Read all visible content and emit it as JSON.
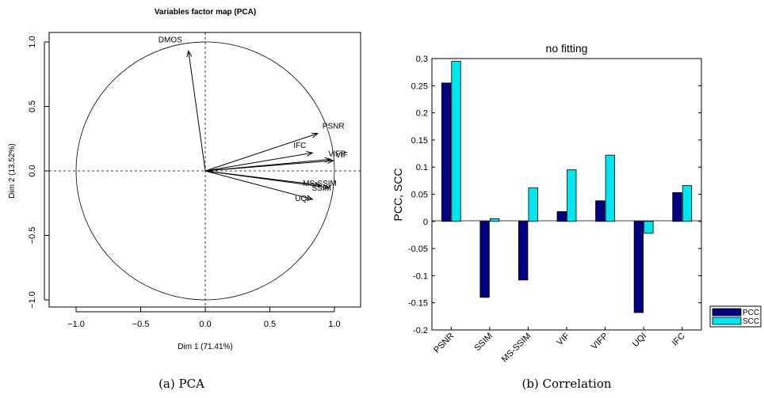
{
  "pca": {
    "title": "Variables factor map (PCA)",
    "xlabel": "Dim 1 (71.41%)",
    "ylabel": "Dim 2 (13.52%)",
    "xticks": [
      "−1.0",
      "−0.5",
      "0.0",
      "0.5",
      "1.0"
    ],
    "yticks": [
      "−1.0",
      "−0.5",
      "0.0",
      "0.5",
      "1.0"
    ],
    "caption": "(a)  PCA"
  },
  "corr": {
    "title": "no fitting",
    "ylabel": "PCC, SCC",
    "yticks": [
      "-0.2",
      "-0.15",
      "-0.1",
      "-0.05",
      "0",
      "0.05",
      "0.1",
      "0.15",
      "0.2",
      "0.25",
      "0.3"
    ],
    "caption": "(b)  Correlation"
  },
  "chart_data": [
    {
      "type": "scatter",
      "title": "Variables factor map (PCA)",
      "xlabel": "Dim 1 (71.41%)",
      "ylabel": "Dim 2 (13.52%)",
      "xlim": [
        -1.2,
        1.2
      ],
      "ylim": [
        -1.05,
        1.05
      ],
      "unit_circle": true,
      "grid": "dashed axes through origin",
      "vectors": [
        {
          "name": "DMOS",
          "x": -0.13,
          "y": 0.93
        },
        {
          "name": "PSNR",
          "x": 0.87,
          "y": 0.29
        },
        {
          "name": "IFC",
          "x": 0.83,
          "y": 0.14
        },
        {
          "name": "VIF",
          "x": 0.99,
          "y": 0.08
        },
        {
          "name": "VIFP",
          "x": 0.97,
          "y": 0.09
        },
        {
          "name": "MS-SSIM",
          "x": 0.89,
          "y": -0.11
        },
        {
          "name": "SSIM",
          "x": 0.96,
          "y": -0.13
        },
        {
          "name": "UQI",
          "x": 0.83,
          "y": -0.22
        }
      ]
    },
    {
      "type": "bar",
      "title": "no fitting",
      "ylabel": "PCC, SCC",
      "ylim": [
        -0.2,
        0.3
      ],
      "categories": [
        "PSNR",
        "SSIM",
        "MS-SSIM",
        "VIF",
        "VIFP",
        "UQI",
        "IFC"
      ],
      "series": [
        {
          "name": "PCC",
          "color": "#000080",
          "values": [
            0.255,
            -0.14,
            -0.108,
            0.018,
            0.038,
            -0.168,
            0.053
          ]
        },
        {
          "name": "SCC",
          "color": "#00e5ee",
          "values": [
            0.295,
            0.005,
            0.062,
            0.095,
            0.122,
            -0.022,
            0.066
          ]
        }
      ],
      "legend": "right, outside bottom"
    }
  ]
}
